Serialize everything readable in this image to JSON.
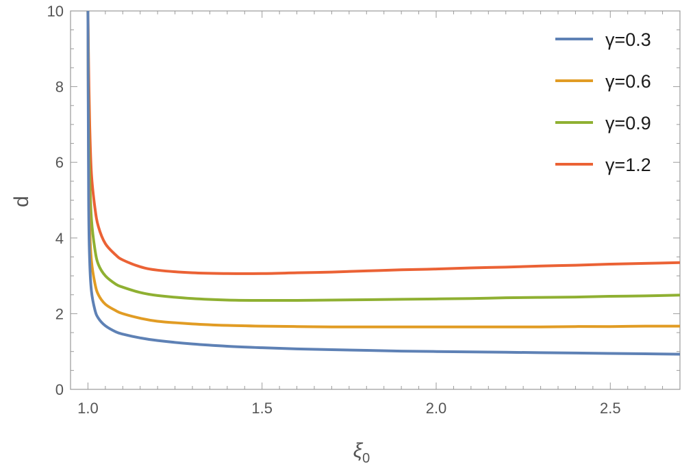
{
  "chart_data": {
    "type": "line",
    "title": "",
    "xlabel": "ξ",
    "xlabel_subscript": "0",
    "ylabel": "d",
    "xlim": [
      0.95,
      2.7
    ],
    "ylim": [
      0,
      10
    ],
    "xticks": [
      1.0,
      1.5,
      2.0,
      2.5
    ],
    "xtick_labels": [
      "1.0",
      "1.5",
      "2.0",
      "2.5"
    ],
    "yticks": [
      0,
      2,
      4,
      6,
      8,
      10
    ],
    "ytick_labels": [
      "0",
      "2",
      "4",
      "6",
      "8",
      "10"
    ],
    "grid": false,
    "legend_position": "top-right",
    "series": [
      {
        "name": "γ=0.3",
        "color": "#5e81b5",
        "x": [
          1.0,
          1.002,
          1.005,
          1.01,
          1.02,
          1.03,
          1.05,
          1.08,
          1.1,
          1.15,
          1.2,
          1.3,
          1.4,
          1.5,
          1.6,
          1.7,
          1.8,
          1.9,
          2.0,
          2.1,
          2.2,
          2.3,
          2.4,
          2.5,
          2.6,
          2.7
        ],
        "y": [
          10.0,
          5.0,
          3.4,
          2.6,
          2.1,
          1.88,
          1.68,
          1.52,
          1.46,
          1.36,
          1.29,
          1.2,
          1.14,
          1.1,
          1.07,
          1.05,
          1.03,
          1.01,
          1.0,
          0.99,
          0.98,
          0.97,
          0.96,
          0.95,
          0.94,
          0.93
        ]
      },
      {
        "name": "γ=0.6",
        "color": "#e19c24",
        "x": [
          1.0,
          1.002,
          1.005,
          1.01,
          1.02,
          1.03,
          1.05,
          1.08,
          1.1,
          1.15,
          1.2,
          1.3,
          1.4,
          1.5,
          1.6,
          1.7,
          1.8,
          1.9,
          2.0,
          2.1,
          2.2,
          2.3,
          2.4,
          2.5,
          2.6,
          2.7
        ],
        "y": [
          10.0,
          6.0,
          4.3,
          3.4,
          2.8,
          2.5,
          2.25,
          2.08,
          2.0,
          1.88,
          1.8,
          1.73,
          1.69,
          1.67,
          1.66,
          1.65,
          1.65,
          1.65,
          1.65,
          1.65,
          1.65,
          1.65,
          1.66,
          1.66,
          1.67,
          1.67
        ]
      },
      {
        "name": "γ=0.9",
        "color": "#8fb032",
        "x": [
          1.0,
          1.002,
          1.005,
          1.01,
          1.02,
          1.03,
          1.05,
          1.08,
          1.1,
          1.15,
          1.2,
          1.3,
          1.4,
          1.5,
          1.6,
          1.7,
          1.8,
          1.9,
          2.0,
          2.1,
          2.2,
          2.3,
          2.4,
          2.5,
          2.6,
          2.7
        ],
        "y": [
          10.0,
          7.0,
          5.6,
          4.5,
          3.7,
          3.3,
          3.0,
          2.78,
          2.7,
          2.56,
          2.48,
          2.4,
          2.36,
          2.35,
          2.35,
          2.36,
          2.37,
          2.38,
          2.39,
          2.4,
          2.42,
          2.43,
          2.44,
          2.46,
          2.47,
          2.49
        ]
      },
      {
        "name": "γ=1.2",
        "color": "#eb6235",
        "x": [
          1.0,
          1.002,
          1.005,
          1.01,
          1.02,
          1.03,
          1.05,
          1.08,
          1.1,
          1.15,
          1.2,
          1.3,
          1.4,
          1.5,
          1.6,
          1.7,
          1.8,
          1.9,
          2.0,
          2.1,
          2.2,
          2.3,
          2.4,
          2.5,
          2.6,
          2.7
        ],
        "y": [
          10.0,
          8.5,
          7.0,
          5.7,
          4.8,
          4.3,
          3.85,
          3.55,
          3.42,
          3.24,
          3.15,
          3.08,
          3.06,
          3.06,
          3.08,
          3.1,
          3.13,
          3.16,
          3.18,
          3.21,
          3.23,
          3.26,
          3.28,
          3.31,
          3.33,
          3.35
        ]
      }
    ]
  }
}
